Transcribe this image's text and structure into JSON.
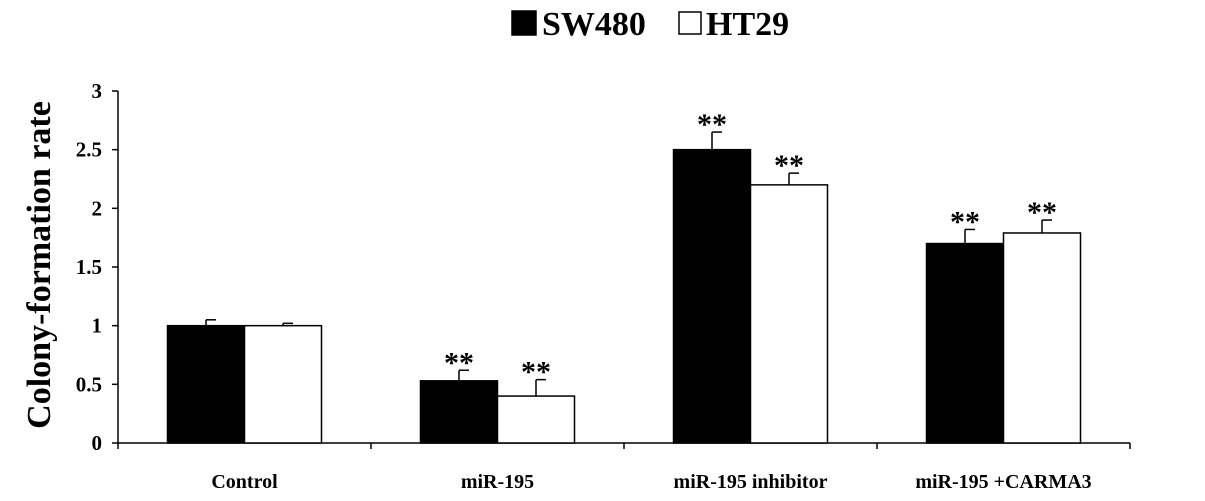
{
  "chart_data": {
    "type": "bar",
    "title": "",
    "xlabel": "",
    "ylabel": "Colony-formation rate",
    "ylim": [
      0,
      3
    ],
    "yticks": [
      "0",
      "0.5",
      "1",
      "1.5",
      "2",
      "2.5",
      "3"
    ],
    "categories": [
      "Control",
      "miR-195",
      "miR-195 inhibitor",
      "miR-195 +CARMA3"
    ],
    "legend_position": "top-center",
    "grid": false,
    "series": [
      {
        "name": "SW480",
        "color": "#000000",
        "values": [
          1.0,
          0.53,
          2.5,
          1.7
        ],
        "errors": [
          0.05,
          0.09,
          0.15,
          0.12
        ],
        "significance": [
          "",
          "**",
          "**",
          "**"
        ]
      },
      {
        "name": "HT29",
        "color": "#ffffff",
        "values": [
          1.0,
          0.4,
          2.2,
          1.79
        ],
        "errors": [
          0.02,
          0.14,
          0.1,
          0.11
        ],
        "significance": [
          "",
          "**",
          "**",
          "**"
        ]
      }
    ]
  }
}
